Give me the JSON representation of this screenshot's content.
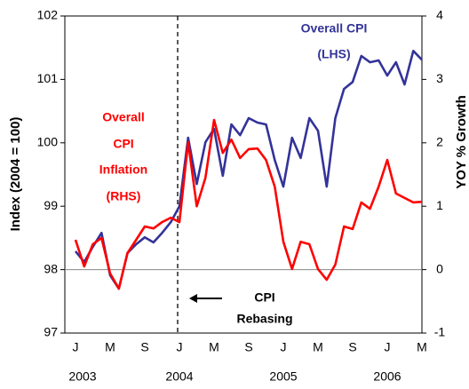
{
  "chart_data": {
    "type": "line",
    "categories": [
      "J",
      null,
      null,
      null,
      "M",
      null,
      null,
      null,
      "S",
      null,
      null,
      null,
      "J",
      null,
      null,
      null,
      "M",
      null,
      null,
      null,
      "S",
      null,
      null,
      null,
      "J",
      null,
      null,
      null,
      "M",
      null,
      null,
      null,
      "S",
      null,
      null,
      null,
      "J",
      null,
      null,
      null,
      "M"
    ],
    "year_labels": [
      "2003",
      "2004",
      "2005",
      "2006"
    ],
    "ylabel": "Index (2004 = 100)",
    "y2label": "YOY % Growth",
    "ylim": [
      97,
      102
    ],
    "yticks": [
      97,
      98,
      99,
      100,
      101,
      102
    ],
    "y2lim": [
      -1,
      4
    ],
    "y2ticks": [
      -1,
      0,
      1,
      2,
      3,
      4
    ],
    "series": [
      {
        "name": "Overall CPI (LHS)",
        "color": "#333399",
        "axis": "y",
        "values": [
          98.29,
          98.12,
          98.36,
          98.58,
          97.91,
          97.7,
          98.26,
          98.4,
          98.51,
          98.43,
          98.58,
          98.75,
          99.0,
          100.08,
          99.35,
          100.01,
          100.22,
          99.48,
          100.29,
          100.12,
          100.39,
          100.32,
          100.29,
          99.73,
          99.31,
          100.08,
          99.76,
          100.39,
          100.19,
          99.31,
          100.39,
          100.85,
          100.96,
          101.37,
          101.27,
          101.3,
          101.06,
          101.27,
          100.92,
          101.45,
          101.31
        ]
      },
      {
        "name": "Overall CPI Inflation (RHS)",
        "color": "#ff0000",
        "axis": "y2",
        "values": [
          0.47,
          0.05,
          0.4,
          0.5,
          -0.06,
          -0.3,
          0.26,
          0.47,
          0.68,
          0.65,
          0.75,
          0.82,
          0.75,
          2.01,
          1.0,
          1.45,
          2.36,
          1.84,
          2.05,
          1.76,
          1.9,
          1.91,
          1.73,
          1.31,
          0.44,
          0.01,
          0.44,
          0.4,
          0.01,
          -0.16,
          0.08,
          0.68,
          0.64,
          1.06,
          0.96,
          1.31,
          1.73,
          1.2,
          1.13,
          1.06,
          1.07
        ]
      }
    ],
    "annotations": {
      "blue": [
        "Overall CPI",
        "(LHS)"
      ],
      "red": [
        "Overall",
        "CPI",
        "Inflation",
        "(RHS)"
      ],
      "rebasing": [
        "CPI",
        "Rebasing"
      ]
    }
  }
}
